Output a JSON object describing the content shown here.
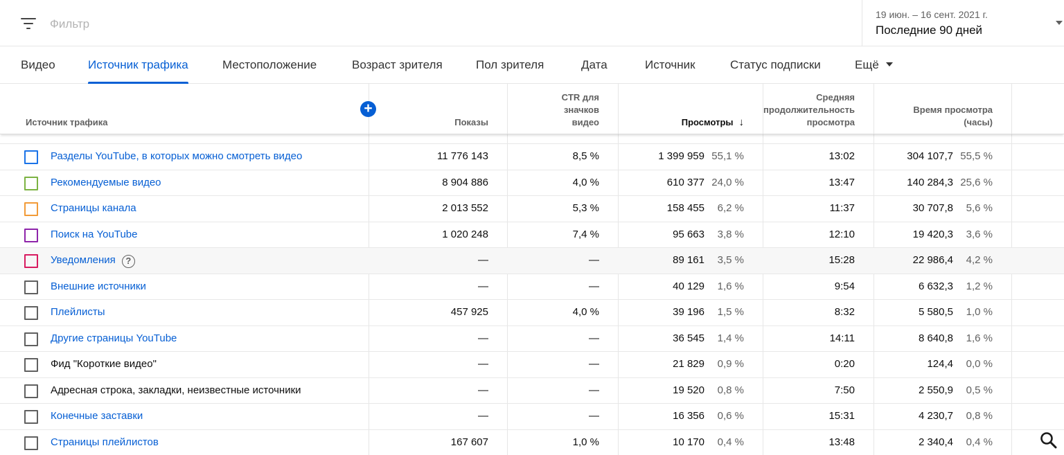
{
  "filter": {
    "placeholder": "Фильтр"
  },
  "date": {
    "range": "19 июн. – 16 сент. 2021 г.",
    "label": "Последние 90 дней"
  },
  "tabs": [
    {
      "label": "Видео"
    },
    {
      "label": "Источник трафика",
      "active": true
    },
    {
      "label": "Местоположение"
    },
    {
      "label": "Возраст зрителя"
    },
    {
      "label": "Пол зрителя"
    },
    {
      "label": "Дата"
    },
    {
      "label": "Источник"
    },
    {
      "label": "Статус подписки"
    },
    {
      "label": "Ещё"
    }
  ],
  "table": {
    "headers": {
      "source": "Источник трафика",
      "impressions": "Показы",
      "ctr_line1": "CTR для",
      "ctr_line2": "значков",
      "ctr_line3": "видео",
      "views": "Просмотры",
      "avg_line1": "Средняя",
      "avg_line2": "продолжительность",
      "avg_line3": "просмотра",
      "watch_line1": "Время просмотра",
      "watch_line2": "(часы)"
    },
    "rows": [
      {
        "name": "Разделы YouTube, в которых можно смотреть видео",
        "link": true,
        "color": "#1a73e8",
        "impressions": "11 776 143",
        "ctr": "8,5 %",
        "views": "1 399 959",
        "views_pct": "55,1 %",
        "avg": "13:02",
        "watch": "304 107,7",
        "watch_pct": "55,5 %"
      },
      {
        "name": "Рекомендуемые видео",
        "link": true,
        "color": "#7cb342",
        "impressions": "8 904 886",
        "ctr": "4,0 %",
        "views": "610 377",
        "views_pct": "24,0 %",
        "avg": "13:47",
        "watch": "140 284,3",
        "watch_pct": "25,6 %"
      },
      {
        "name": "Страницы канала",
        "link": true,
        "color": "#f29b38",
        "impressions": "2 013 552",
        "ctr": "5,3 %",
        "views": "158 455",
        "views_pct": "6,2 %",
        "avg": "11:37",
        "watch": "30 707,8",
        "watch_pct": "5,6 %"
      },
      {
        "name": "Поиск на YouTube",
        "link": true,
        "color": "#8e24aa",
        "impressions": "1 020 248",
        "ctr": "7,4 %",
        "views": "95 663",
        "views_pct": "3,8 %",
        "avg": "12:10",
        "watch": "19 420,3",
        "watch_pct": "3,6 %"
      },
      {
        "name": "Уведомления",
        "link": true,
        "color": "#d81b60",
        "help": true,
        "highlight": true,
        "impressions": "—",
        "ctr": "—",
        "views": "89 161",
        "views_pct": "3,5 %",
        "avg": "15:28",
        "watch": "22 986,4",
        "watch_pct": "4,2 %"
      },
      {
        "name": "Внешние источники",
        "link": true,
        "color": "#606060",
        "impressions": "—",
        "ctr": "—",
        "views": "40 129",
        "views_pct": "1,6 %",
        "avg": "9:54",
        "watch": "6 632,3",
        "watch_pct": "1,2 %"
      },
      {
        "name": "Плейлисты",
        "link": true,
        "color": "#606060",
        "impressions": "457 925",
        "ctr": "4,0 %",
        "views": "39 196",
        "views_pct": "1,5 %",
        "avg": "8:32",
        "watch": "5 580,5",
        "watch_pct": "1,0 %"
      },
      {
        "name": "Другие страницы YouTube",
        "link": true,
        "color": "#606060",
        "impressions": "—",
        "ctr": "—",
        "views": "36 545",
        "views_pct": "1,4 %",
        "avg": "14:11",
        "watch": "8 640,8",
        "watch_pct": "1,6 %"
      },
      {
        "name": "Фид \"Короткие видео\"",
        "link": false,
        "color": "#606060",
        "impressions": "—",
        "ctr": "—",
        "views": "21 829",
        "views_pct": "0,9 %",
        "avg": "0:20",
        "watch": "124,4",
        "watch_pct": "0,0 %"
      },
      {
        "name": "Адресная строка, закладки, неизвестные источники",
        "link": false,
        "color": "#606060",
        "impressions": "—",
        "ctr": "—",
        "views": "19 520",
        "views_pct": "0,8 %",
        "avg": "7:50",
        "watch": "2 550,9",
        "watch_pct": "0,5 %"
      },
      {
        "name": "Конечные заставки",
        "link": true,
        "color": "#606060",
        "impressions": "—",
        "ctr": "—",
        "views": "16 356",
        "views_pct": "0,6 %",
        "avg": "15:31",
        "watch": "4 230,7",
        "watch_pct": "0,8 %"
      },
      {
        "name": "Страницы плейлистов",
        "link": true,
        "color": "#606060",
        "impressions": "167 607",
        "ctr": "1,0 %",
        "views": "10 170",
        "views_pct": "0,4 %",
        "avg": "13:48",
        "watch": "2 340,4",
        "watch_pct": "0,4 %"
      }
    ]
  },
  "icons": {
    "filter": "filter-list-icon",
    "date_dropdown": "caret-down-icon",
    "add_metric": "add-circle-icon",
    "sort": "arrow-down-icon",
    "help": "help-circle-icon",
    "search": "search-icon"
  }
}
